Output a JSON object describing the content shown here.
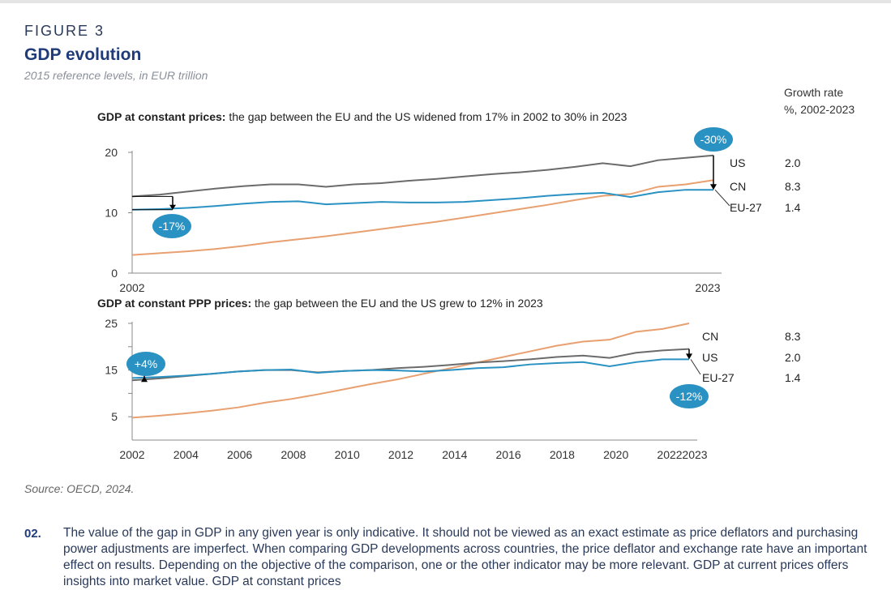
{
  "figure_label": "FIGURE 3",
  "title": "GDP evolution",
  "subtitle": "2015 reference levels, in EUR trillion",
  "growth_header": [
    "Growth rate",
    "%, 2002-2023"
  ],
  "source": "Source: OECD, 2024.",
  "paragraph": {
    "number": "02.",
    "text": "The value of the gap in GDP in any given year is only indicative. It should not be viewed as an exact estimate as price deflators and purchasing power adjustments are imperfect. When comparing GDP developments across countries, the price deflator and exchange rate have an important effect on results. Depending on the objective of the comparison, one or the other indicator may be more relevant. GDP at current prices offers insights into market value. GDP at constant prices"
  },
  "colors": {
    "US": "#6b6b6b",
    "EU-27": "#2a92c2",
    "CN": "#e8a070",
    "bubble": "#2a92c2"
  },
  "chart_data": [
    {
      "type": "line",
      "title_bold": "GDP at constant prices:",
      "title": " the gap between the EU and the US widened from 17% in 2002 to 30% in 2023",
      "x": [
        2002,
        2003,
        2004,
        2005,
        2006,
        2007,
        2008,
        2009,
        2010,
        2011,
        2012,
        2013,
        2014,
        2015,
        2016,
        2017,
        2018,
        2019,
        2020,
        2021,
        2022,
        2023
      ],
      "xticks": [
        2002,
        2023
      ],
      "ylim": [
        0,
        20
      ],
      "yticks": [
        0,
        10,
        20
      ],
      "series": [
        {
          "name": "US",
          "growth": "2.0",
          "values": [
            12.7,
            13.0,
            13.5,
            14.0,
            14.4,
            14.7,
            14.7,
            14.3,
            14.7,
            14.9,
            15.3,
            15.6,
            16.0,
            16.4,
            16.7,
            17.1,
            17.6,
            18.2,
            17.7,
            18.7,
            19.1,
            19.5
          ]
        },
        {
          "name": "CN",
          "growth": "8.3",
          "values": [
            3.0,
            3.3,
            3.6,
            4.0,
            4.5,
            5.1,
            5.6,
            6.1,
            6.7,
            7.3,
            7.9,
            8.5,
            9.2,
            9.9,
            10.6,
            11.3,
            12.1,
            12.8,
            13.1,
            14.3,
            14.7,
            15.4
          ]
        },
        {
          "name": "EU-27",
          "growth": "1.4",
          "values": [
            10.5,
            10.6,
            10.8,
            11.1,
            11.5,
            11.8,
            11.9,
            11.4,
            11.6,
            11.8,
            11.7,
            11.7,
            11.8,
            12.1,
            12.4,
            12.8,
            13.1,
            13.3,
            12.6,
            13.4,
            13.8,
            13.8
          ]
        }
      ],
      "annotations": [
        {
          "text": "-17%",
          "year": 2002
        },
        {
          "text": "-30%",
          "year": 2023
        }
      ]
    },
    {
      "type": "line",
      "title_bold": "GDP at constant PPP prices:",
      "title": " the gap between the EU and the US grew to 12% in 2023",
      "x": [
        2002,
        2003,
        2004,
        2005,
        2006,
        2007,
        2008,
        2009,
        2010,
        2011,
        2012,
        2013,
        2014,
        2015,
        2016,
        2017,
        2018,
        2019,
        2020,
        2021,
        2022,
        2023
      ],
      "xticks": [
        2002,
        2004,
        2006,
        2008,
        2010,
        2012,
        2014,
        2016,
        2018,
        2020,
        2022,
        2023
      ],
      "ylim": [
        0,
        25
      ],
      "yticks": [
        5,
        15,
        25
      ],
      "series": [
        {
          "name": "CN",
          "growth": "8.3",
          "values": [
            4.8,
            5.2,
            5.7,
            6.3,
            7.0,
            8.0,
            8.8,
            9.8,
            10.9,
            12.0,
            13.0,
            14.2,
            15.4,
            16.6,
            17.8,
            19.0,
            20.2,
            21.1,
            21.5,
            23.2,
            23.8,
            25.0
          ]
        },
        {
          "name": "US",
          "growth": "2.0",
          "values": [
            12.8,
            13.2,
            13.7,
            14.2,
            14.7,
            15.0,
            15.0,
            14.5,
            14.8,
            15.0,
            15.4,
            15.7,
            16.1,
            16.6,
            16.9,
            17.3,
            17.8,
            18.1,
            17.6,
            18.7,
            19.2,
            19.5
          ]
        },
        {
          "name": "EU-27",
          "growth": "1.4",
          "values": [
            13.3,
            13.5,
            13.8,
            14.2,
            14.7,
            15.0,
            15.1,
            14.4,
            14.8,
            15.0,
            14.9,
            14.7,
            15.0,
            15.4,
            15.6,
            16.2,
            16.5,
            16.7,
            15.8,
            16.7,
            17.3,
            17.3
          ]
        }
      ],
      "annotations": [
        {
          "text": "+4%",
          "year": 2002
        },
        {
          "text": "-12%",
          "year": 2023
        }
      ]
    }
  ]
}
